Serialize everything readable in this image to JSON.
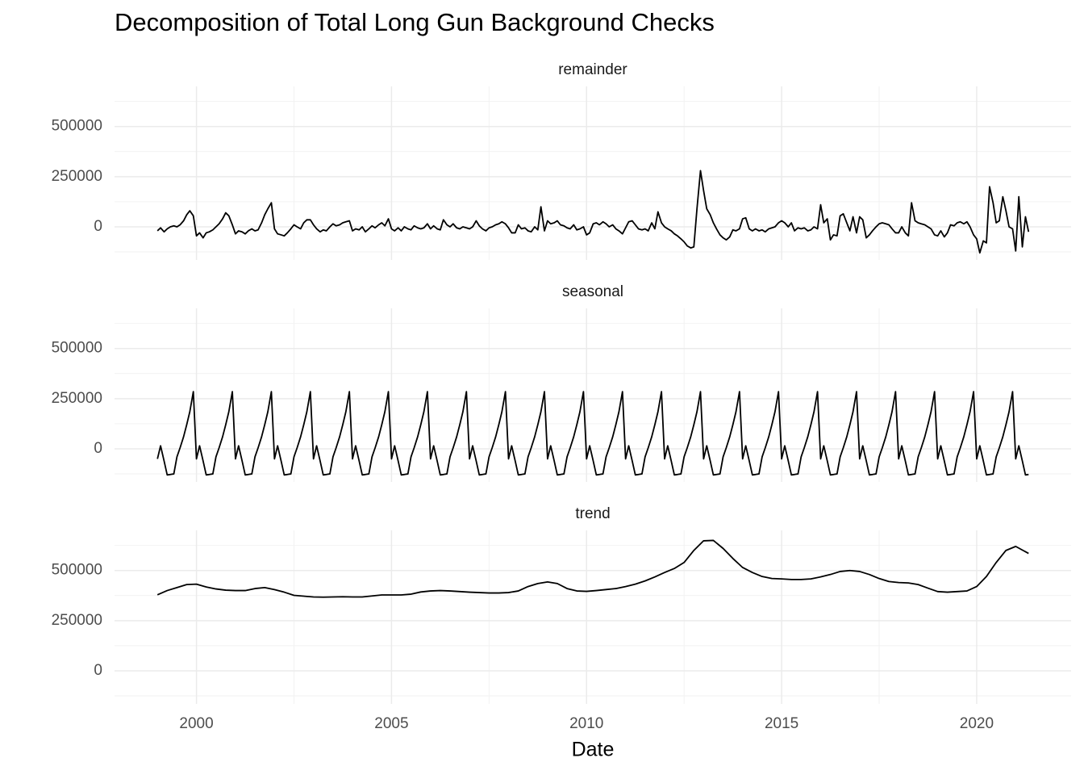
{
  "chart_data": {
    "type": "line",
    "title": "Decomposition of Total Long Gun Background Checks",
    "x_label": "Date",
    "xlim": [
      1997.9,
      2022.42
    ],
    "xticks": [
      2000,
      2005,
      2010,
      2015,
      2020
    ],
    "xminor_ticks": [
      2002.5,
      2007.5,
      2012.5,
      2017.5
    ],
    "ylim": [
      -165000,
      700000
    ],
    "yticks": [
      0,
      250000,
      500000
    ],
    "yminor_ticks": [
      -125000,
      125000,
      375000,
      625000
    ],
    "grid": true,
    "x": [
      1999,
      1999.08,
      1999.17,
      1999.25,
      1999.33,
      1999.42,
      1999.5,
      1999.58,
      1999.67,
      1999.75,
      1999.83,
      1999.92,
      2000,
      2000.08,
      2000.17,
      2000.25,
      2000.33,
      2000.42,
      2000.5,
      2000.58,
      2000.67,
      2000.75,
      2000.83,
      2000.92,
      2001,
      2001.08,
      2001.17,
      2001.25,
      2001.33,
      2001.42,
      2001.5,
      2001.58,
      2001.67,
      2001.75,
      2001.83,
      2001.92,
      2002,
      2002.08,
      2002.17,
      2002.25,
      2002.33,
      2002.42,
      2002.5,
      2002.58,
      2002.67,
      2002.75,
      2002.83,
      2002.92,
      2003,
      2003.08,
      2003.17,
      2003.25,
      2003.33,
      2003.42,
      2003.5,
      2003.58,
      2003.67,
      2003.75,
      2003.83,
      2003.92,
      2004,
      2004.08,
      2004.17,
      2004.25,
      2004.33,
      2004.42,
      2004.5,
      2004.58,
      2004.67,
      2004.75,
      2004.83,
      2004.92,
      2005,
      2005.08,
      2005.17,
      2005.25,
      2005.33,
      2005.42,
      2005.5,
      2005.58,
      2005.67,
      2005.75,
      2005.83,
      2005.92,
      2006,
      2006.08,
      2006.17,
      2006.25,
      2006.33,
      2006.42,
      2006.5,
      2006.58,
      2006.67,
      2006.75,
      2006.83,
      2006.92,
      2007,
      2007.08,
      2007.17,
      2007.25,
      2007.33,
      2007.42,
      2007.5,
      2007.58,
      2007.67,
      2007.75,
      2007.83,
      2007.92,
      2008,
      2008.08,
      2008.17,
      2008.25,
      2008.33,
      2008.42,
      2008.5,
      2008.58,
      2008.67,
      2008.75,
      2008.83,
      2008.92,
      2009,
      2009.08,
      2009.17,
      2009.25,
      2009.33,
      2009.42,
      2009.5,
      2009.58,
      2009.67,
      2009.75,
      2009.83,
      2009.92,
      2010,
      2010.08,
      2010.17,
      2010.25,
      2010.33,
      2010.42,
      2010.5,
      2010.58,
      2010.67,
      2010.75,
      2010.83,
      2010.92,
      2011,
      2011.08,
      2011.17,
      2011.25,
      2011.33,
      2011.42,
      2011.5,
      2011.58,
      2011.67,
      2011.75,
      2011.83,
      2011.92,
      2012,
      2012.08,
      2012.17,
      2012.25,
      2012.33,
      2012.42,
      2012.5,
      2012.58,
      2012.67,
      2012.75,
      2012.83,
      2012.92,
      2013,
      2013.08,
      2013.17,
      2013.25,
      2013.33,
      2013.42,
      2013.5,
      2013.58,
      2013.67,
      2013.75,
      2013.83,
      2013.92,
      2014,
      2014.08,
      2014.17,
      2014.25,
      2014.33,
      2014.42,
      2014.5,
      2014.58,
      2014.67,
      2014.75,
      2014.83,
      2014.92,
      2015,
      2015.08,
      2015.17,
      2015.25,
      2015.33,
      2015.42,
      2015.5,
      2015.58,
      2015.67,
      2015.75,
      2015.83,
      2015.92,
      2016,
      2016.08,
      2016.17,
      2016.25,
      2016.33,
      2016.42,
      2016.5,
      2016.58,
      2016.67,
      2016.75,
      2016.83,
      2016.92,
      2017,
      2017.08,
      2017.17,
      2017.25,
      2017.33,
      2017.42,
      2017.5,
      2017.58,
      2017.67,
      2017.75,
      2017.83,
      2017.92,
      2018,
      2018.08,
      2018.17,
      2018.25,
      2018.33,
      2018.42,
      2018.5,
      2018.58,
      2018.67,
      2018.75,
      2018.83,
      2018.92,
      2019,
      2019.08,
      2019.17,
      2019.25,
      2019.33,
      2019.42,
      2019.5,
      2019.58,
      2019.67,
      2019.75,
      2019.83,
      2019.92,
      2020,
      2020.08,
      2020.17,
      2020.25,
      2020.33,
      2020.42,
      2020.5,
      2020.58,
      2020.67,
      2020.75,
      2020.83,
      2020.92,
      2021,
      2021.08,
      2021.17,
      2021.25,
      2021.33
    ],
    "series": [
      {
        "name": "remainder",
        "color": "#000000",
        "values": [
          -20000,
          -5000,
          -25000,
          -10000,
          0,
          5000,
          0,
          10000,
          30000,
          60000,
          80000,
          55000,
          -45000,
          -30000,
          -55000,
          -30000,
          -25000,
          -15000,
          0,
          15000,
          40000,
          70000,
          55000,
          10000,
          -35000,
          -20000,
          -25000,
          -35000,
          -20000,
          -10000,
          -20000,
          -15000,
          20000,
          60000,
          90000,
          120000,
          -10000,
          -35000,
          -40000,
          -45000,
          -30000,
          -10000,
          10000,
          0,
          -10000,
          20000,
          35000,
          35000,
          10000,
          -10000,
          -25000,
          -15000,
          -20000,
          0,
          15000,
          5000,
          10000,
          20000,
          25000,
          30000,
          -20000,
          -10000,
          -15000,
          0,
          -25000,
          -10000,
          5000,
          -5000,
          10000,
          20000,
          5000,
          40000,
          -10000,
          -20000,
          -5000,
          -20000,
          0,
          -10000,
          -15000,
          5000,
          -5000,
          -10000,
          -5000,
          15000,
          -10000,
          5000,
          -10000,
          -15000,
          35000,
          10000,
          0,
          15000,
          -5000,
          -10000,
          0,
          -5000,
          -10000,
          0,
          30000,
          5000,
          -10000,
          -20000,
          -5000,
          0,
          10000,
          15000,
          25000,
          15000,
          -5000,
          -30000,
          -30000,
          10000,
          -10000,
          -5000,
          -20000,
          -25000,
          0,
          -15000,
          100000,
          -20000,
          30000,
          15000,
          20000,
          30000,
          10000,
          5000,
          -5000,
          -10000,
          10000,
          -15000,
          -10000,
          0,
          -40000,
          -30000,
          15000,
          20000,
          10000,
          25000,
          15000,
          0,
          10000,
          -10000,
          -20000,
          -35000,
          -5000,
          25000,
          30000,
          10000,
          -10000,
          -15000,
          -10000,
          -20000,
          20000,
          -10000,
          75000,
          20000,
          0,
          -10000,
          -20000,
          -35000,
          -45000,
          -60000,
          -75000,
          -95000,
          -105000,
          -100000,
          90000,
          280000,
          180000,
          90000,
          60000,
          20000,
          -10000,
          -40000,
          -55000,
          -65000,
          -50000,
          -15000,
          -20000,
          -10000,
          40000,
          45000,
          -10000,
          -20000,
          -10000,
          -20000,
          -15000,
          -25000,
          -10000,
          -5000,
          0,
          20000,
          30000,
          20000,
          0,
          20000,
          -20000,
          -5000,
          -10000,
          -5000,
          -20000,
          -15000,
          0,
          -10000,
          110000,
          20000,
          40000,
          -65000,
          -40000,
          -45000,
          55000,
          65000,
          20000,
          -20000,
          50000,
          -30000,
          50000,
          35000,
          -55000,
          -40000,
          -20000,
          0,
          15000,
          20000,
          15000,
          10000,
          -10000,
          -30000,
          -30000,
          0,
          -30000,
          -45000,
          120000,
          30000,
          20000,
          15000,
          10000,
          0,
          -10000,
          -40000,
          -45000,
          -20000,
          -50000,
          -30000,
          10000,
          5000,
          20000,
          25000,
          15000,
          25000,
          0,
          -40000,
          -60000,
          -130000,
          -70000,
          -80000,
          200000,
          120000,
          20000,
          30000,
          150000,
          80000,
          0,
          -10000,
          -120000,
          150000,
          -100000,
          50000,
          -25000
        ]
      },
      {
        "name": "seasonal",
        "color": "#000000",
        "values": [
          -50000,
          15000,
          -60000,
          -130000,
          -128000,
          -125000,
          -40000,
          5000,
          60000,
          120000,
          185000,
          285000,
          -50000,
          15000,
          -60000,
          -130000,
          -128000,
          -125000,
          -40000,
          5000,
          60000,
          120000,
          185000,
          285000,
          -50000,
          15000,
          -60000,
          -130000,
          -128000,
          -125000,
          -40000,
          5000,
          60000,
          120000,
          185000,
          285000,
          -50000,
          15000,
          -60000,
          -130000,
          -128000,
          -125000,
          -40000,
          5000,
          60000,
          120000,
          185000,
          285000,
          -50000,
          15000,
          -60000,
          -130000,
          -128000,
          -125000,
          -40000,
          5000,
          60000,
          120000,
          185000,
          285000,
          -50000,
          15000,
          -60000,
          -130000,
          -128000,
          -125000,
          -40000,
          5000,
          60000,
          120000,
          185000,
          285000,
          -50000,
          15000,
          -60000,
          -130000,
          -128000,
          -125000,
          -40000,
          5000,
          60000,
          120000,
          185000,
          285000,
          -50000,
          15000,
          -60000,
          -130000,
          -128000,
          -125000,
          -40000,
          5000,
          60000,
          120000,
          185000,
          285000,
          -50000,
          15000,
          -60000,
          -130000,
          -128000,
          -125000,
          -40000,
          5000,
          60000,
          120000,
          185000,
          285000,
          -50000,
          15000,
          -60000,
          -130000,
          -128000,
          -125000,
          -40000,
          5000,
          60000,
          120000,
          185000,
          285000,
          -50000,
          15000,
          -60000,
          -130000,
          -128000,
          -125000,
          -40000,
          5000,
          60000,
          120000,
          185000,
          285000,
          -50000,
          15000,
          -60000,
          -130000,
          -128000,
          -125000,
          -40000,
          5000,
          60000,
          120000,
          185000,
          285000,
          -50000,
          15000,
          -60000,
          -130000,
          -128000,
          -125000,
          -40000,
          5000,
          60000,
          120000,
          185000,
          285000,
          -50000,
          15000,
          -60000,
          -130000,
          -128000,
          -125000,
          -40000,
          5000,
          60000,
          120000,
          185000,
          285000,
          -50000,
          15000,
          -60000,
          -130000,
          -128000,
          -125000,
          -40000,
          5000,
          60000,
          120000,
          185000,
          285000,
          -50000,
          15000,
          -60000,
          -130000,
          -128000,
          -125000,
          -40000,
          5000,
          60000,
          120000,
          185000,
          285000,
          -50000,
          15000,
          -60000,
          -130000,
          -128000,
          -125000,
          -40000,
          5000,
          60000,
          120000,
          185000,
          285000,
          -50000,
          15000,
          -60000,
          -130000,
          -128000,
          -125000,
          -40000,
          5000,
          60000,
          120000,
          185000,
          285000,
          -50000,
          15000,
          -60000,
          -130000,
          -128000,
          -125000,
          -40000,
          5000,
          60000,
          120000,
          185000,
          285000,
          -50000,
          15000,
          -60000,
          -130000,
          -128000,
          -125000,
          -40000,
          5000,
          60000,
          120000,
          185000,
          285000,
          -50000,
          15000,
          -60000,
          -130000,
          -128000,
          -125000,
          -40000,
          5000,
          60000,
          120000,
          185000,
          285000,
          -50000,
          15000,
          -60000,
          -130000,
          -128000,
          -125000,
          -40000,
          5000,
          60000,
          120000,
          185000,
          285000,
          -50000,
          15000,
          -60000,
          -130000,
          -128000
        ]
      },
      {
        "name": "trend",
        "color": "#000000",
        "x": [
          1999,
          1999.25,
          1999.5,
          1999.75,
          2000,
          2000.25,
          2000.5,
          2000.75,
          2001,
          2001.25,
          2001.5,
          2001.75,
          2002,
          2002.25,
          2002.5,
          2002.75,
          2003,
          2003.25,
          2003.5,
          2003.75,
          2004,
          2004.25,
          2004.5,
          2004.75,
          2005,
          2005.25,
          2005.5,
          2005.75,
          2006,
          2006.25,
          2006.5,
          2006.75,
          2007,
          2007.25,
          2007.5,
          2007.75,
          2008,
          2008.25,
          2008.5,
          2008.75,
          2009,
          2009.25,
          2009.5,
          2009.75,
          2010,
          2010.25,
          2010.5,
          2010.75,
          2011,
          2011.25,
          2011.5,
          2011.75,
          2012,
          2012.25,
          2012.5,
          2012.75,
          2013,
          2013.25,
          2013.5,
          2013.75,
          2014,
          2014.25,
          2014.5,
          2014.75,
          2015,
          2015.25,
          2015.5,
          2015.75,
          2016,
          2016.25,
          2016.5,
          2016.75,
          2017,
          2017.25,
          2017.5,
          2017.75,
          2018,
          2018.25,
          2018.5,
          2018.75,
          2019,
          2019.25,
          2019.5,
          2019.75,
          2020,
          2020.25,
          2020.5,
          2020.75,
          2021,
          2021.33
        ],
        "values": [
          379000,
          400000,
          415000,
          430000,
          432000,
          418000,
          408000,
          402000,
          400000,
          400000,
          410000,
          415000,
          405000,
          392000,
          376000,
          372000,
          368000,
          367000,
          368000,
          369000,
          368000,
          368000,
          373000,
          378000,
          378000,
          378000,
          382000,
          393000,
          398000,
          400000,
          398000,
          395000,
          392000,
          390000,
          388000,
          388000,
          390000,
          398000,
          420000,
          435000,
          443000,
          435000,
          410000,
          398000,
          396000,
          400000,
          405000,
          410000,
          420000,
          432000,
          448000,
          468000,
          490000,
          510000,
          540000,
          600000,
          648000,
          650000,
          610000,
          560000,
          515000,
          490000,
          470000,
          460000,
          458000,
          455000,
          455000,
          458000,
          468000,
          480000,
          495000,
          500000,
          495000,
          480000,
          460000,
          445000,
          440000,
          438000,
          430000,
          412000,
          395000,
          392000,
          395000,
          398000,
          420000,
          470000,
          540000,
          600000,
          620000,
          585000
        ]
      }
    ]
  }
}
